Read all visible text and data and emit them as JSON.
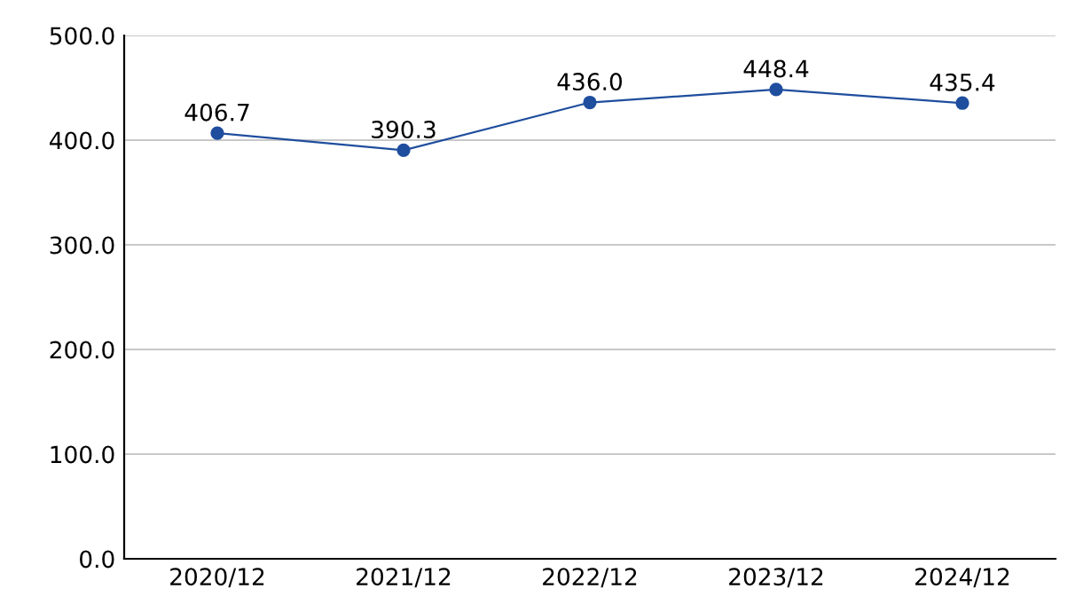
{
  "chart_data": {
    "type": "line",
    "categories": [
      "2020/12",
      "2021/12",
      "2022/12",
      "2023/12",
      "2024/12"
    ],
    "series": [
      {
        "color": "#1f4e9e",
        "values": [
          406.7,
          390.3,
          436.0,
          448.4,
          435.4
        ]
      }
    ],
    "value_labels": [
      "406.7",
      "390.3",
      "436.0",
      "448.4",
      "435.4"
    ],
    "ylim": [
      0,
      500
    ],
    "yticks": [
      {
        "value": 0,
        "label": "0.0"
      },
      {
        "value": 100,
        "label": "100.0"
      },
      {
        "value": 200,
        "label": "200.0"
      },
      {
        "value": 300,
        "label": "300.0"
      },
      {
        "value": 400,
        "label": "400.0"
      },
      {
        "value": 500,
        "label": "500.0"
      }
    ],
    "grid": "y",
    "marker": "circle",
    "line_style": "solid"
  }
}
